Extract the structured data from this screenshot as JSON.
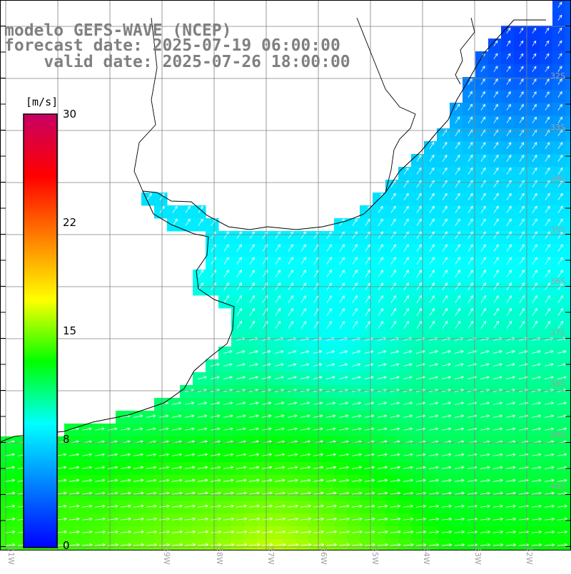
{
  "header": {
    "model_line": "modelo GEFS-WAVE (NCEP)",
    "forecast_line": "forecast date: 2025-07-19 06:00:00",
    "valid_line": "valid date: 2025-07-26 18:00:00"
  },
  "colorbar": {
    "unit": "[m/s]",
    "min": 0,
    "max": 30,
    "ticks": [
      "30",
      "22",
      "15",
      "8",
      "0"
    ],
    "tick_values": [
      30,
      22,
      15,
      8,
      0
    ],
    "stops": [
      "#0000ff",
      "#0080ff",
      "#00ffff",
      "#00ff00",
      "#ffff00",
      "#ff8000",
      "#ff0000",
      "#c80064"
    ]
  },
  "map_labels": {
    "latitudes": [
      "32S",
      "33S",
      "34S",
      "35S",
      "36S",
      "37S",
      "38S",
      "39S",
      "40S"
    ],
    "longitudes": [
      "61W",
      "59W",
      "58W",
      "57W",
      "56W",
      "55W",
      "54W",
      "53W",
      "52W",
      "51W"
    ]
  },
  "colors": {
    "land": "#ffffff",
    "grid": "#808080",
    "coast": "#000000",
    "arrow": "#ffffff"
  }
}
